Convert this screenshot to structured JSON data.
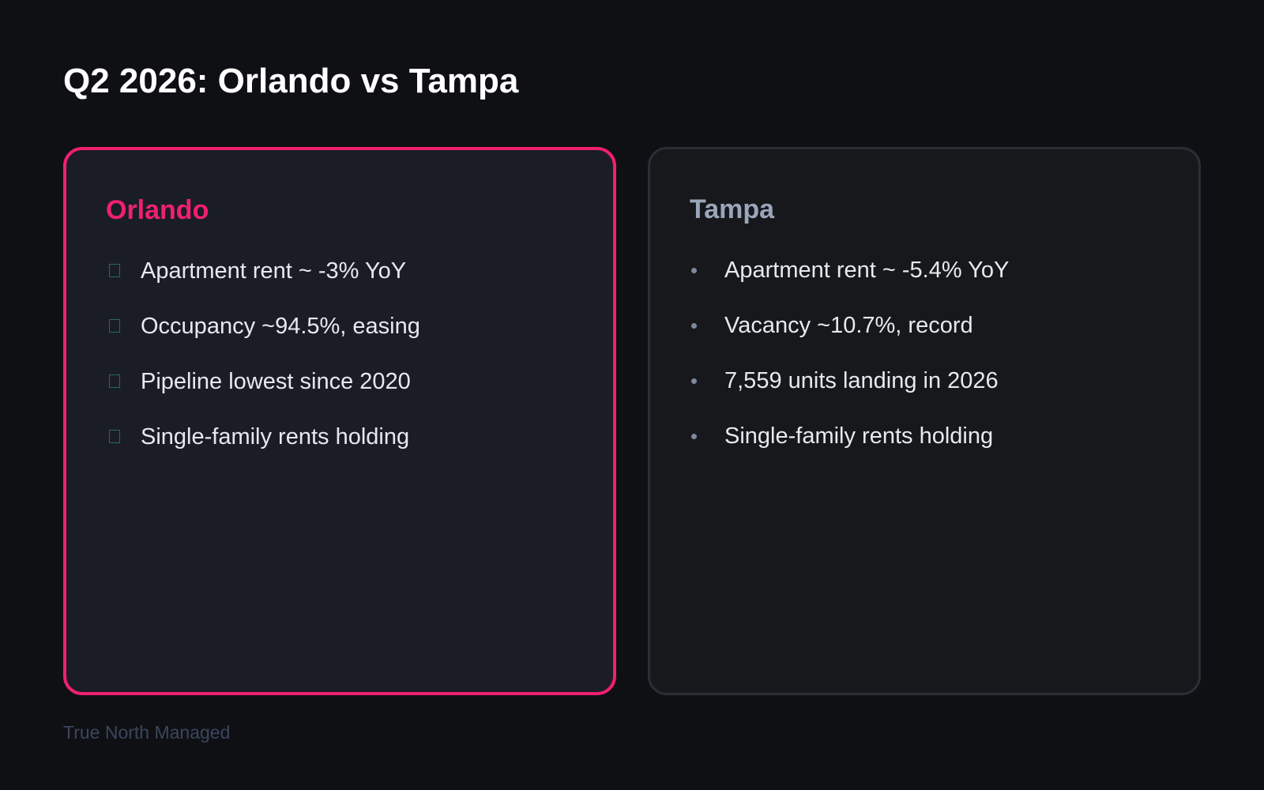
{
  "slide": {
    "title": "Q2 2026: Orlando vs Tampa",
    "footer": "True North Managed"
  },
  "cards": {
    "orlando": {
      "title": "Orlando",
      "accent_color": "#f0206f",
      "marker_icon": "box-glyph-icon",
      "items": [
        "Apartment rent ~ -3% YoY",
        "Occupancy ~94.5%, easing",
        "Pipeline lowest since 2020",
        "Single-family rents holding"
      ]
    },
    "tampa": {
      "title": "Tampa",
      "accent_color": "#9aa6ba",
      "marker_icon": "bullet-dot-icon",
      "items": [
        "Apartment rent ~ -5.4% YoY",
        "Vacancy ~10.7%, record",
        "7,559 units landing in 2026",
        "Single-family rents holding"
      ]
    }
  }
}
